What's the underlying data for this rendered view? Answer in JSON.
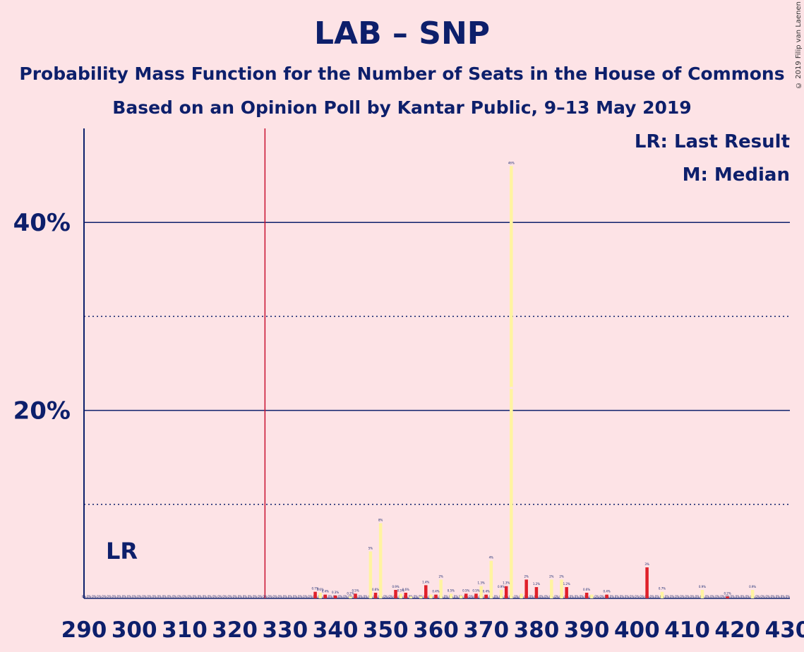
{
  "title": "LAB – SNP",
  "subtitle1": "Probability Mass Function for the Number of Seats in the House of Commons",
  "subtitle2": "Based on an Opinion Poll by Kantar Public, 9–13 May 2019",
  "copyright": "© 2019 Filip van Laenen",
  "legend": {
    "lr": "LR: Last Result",
    "median": "M: Median"
  },
  "lr_marker": "LR",
  "colors": {
    "background": "#fde3e6",
    "axis": "#0d1f6b",
    "bar_red": "#e0202a",
    "bar_yellow": "#fff4a0",
    "lr_line": "#c8102e"
  },
  "chart_data": {
    "type": "bar",
    "title": "LAB – SNP",
    "xlim": [
      290,
      430
    ],
    "ylim": [
      0,
      50
    ],
    "x_ticks": [
      290,
      300,
      310,
      320,
      330,
      340,
      350,
      360,
      370,
      380,
      390,
      400,
      410,
      420,
      430
    ],
    "y_ticks": [
      {
        "value": 20,
        "label": "20%"
      },
      {
        "value": 40,
        "label": "40%"
      }
    ],
    "y_minor_gridlines": [
      10,
      30
    ],
    "last_result": 326,
    "median": 375,
    "series": [
      {
        "color": "red",
        "points": [
          {
            "x": 336,
            "y": 0.7
          },
          {
            "x": 338,
            "y": 0.4
          },
          {
            "x": 340,
            "y": 0.3
          },
          {
            "x": 344,
            "y": 0.5
          },
          {
            "x": 348,
            "y": 0.6
          },
          {
            "x": 352,
            "y": 0.9
          },
          {
            "x": 354,
            "y": 0.6
          },
          {
            "x": 358,
            "y": 1.4
          },
          {
            "x": 360,
            "y": 0.4
          },
          {
            "x": 366,
            "y": 0.5
          },
          {
            "x": 368,
            "y": 0.5
          },
          {
            "x": 370,
            "y": 0.4
          },
          {
            "x": 374,
            "y": 1.3
          },
          {
            "x": 378,
            "y": 2
          },
          {
            "x": 380,
            "y": 1.2
          },
          {
            "x": 386,
            "y": 1.2
          },
          {
            "x": 390,
            "y": 0.6
          },
          {
            "x": 394,
            "y": 0.4
          },
          {
            "x": 402,
            "y": 3.3
          },
          {
            "x": 418,
            "y": 0.2
          }
        ]
      },
      {
        "color": "yellow",
        "points": [
          {
            "x": 337,
            "y": 0.6
          },
          {
            "x": 343,
            "y": 0.2
          },
          {
            "x": 347,
            "y": 5
          },
          {
            "x": 349,
            "y": 8
          },
          {
            "x": 353,
            "y": 0.5
          },
          {
            "x": 355,
            "y": 0.2
          },
          {
            "x": 357,
            "y": 0.2
          },
          {
            "x": 359,
            "y": 0.4
          },
          {
            "x": 361,
            "y": 2
          },
          {
            "x": 363,
            "y": 0.5
          },
          {
            "x": 365,
            "y": 0.3
          },
          {
            "x": 369,
            "y": 1.3
          },
          {
            "x": 371,
            "y": 4
          },
          {
            "x": 373,
            "y": 0.9
          },
          {
            "x": 375,
            "y": 46
          },
          {
            "x": 377,
            "y": 0.5
          },
          {
            "x": 383,
            "y": 2
          },
          {
            "x": 385,
            "y": 2
          },
          {
            "x": 391,
            "y": 0.4
          },
          {
            "x": 405,
            "y": 0.7
          },
          {
            "x": 413,
            "y": 0.9
          },
          {
            "x": 423,
            "y": 0.9
          }
        ]
      }
    ],
    "data_labels": [
      {
        "x": 336,
        "text": "0.7%"
      },
      {
        "x": 337,
        "text": "0.6%"
      },
      {
        "x": 338,
        "text": "0.4%"
      },
      {
        "x": 340,
        "text": "0.3%"
      },
      {
        "x": 343,
        "text": "0.2%"
      },
      {
        "x": 344,
        "text": "0.5%"
      },
      {
        "x": 347,
        "text": "5%"
      },
      {
        "x": 348,
        "text": "0.6%"
      },
      {
        "x": 349,
        "text": "8%"
      },
      {
        "x": 352,
        "text": "0.9%"
      },
      {
        "x": 353,
        "text": "0.5%"
      },
      {
        "x": 354,
        "text": "0.6%"
      },
      {
        "x": 358,
        "text": "1.4%"
      },
      {
        "x": 360,
        "text": "0.4%"
      },
      {
        "x": 361,
        "text": "2%"
      },
      {
        "x": 363,
        "text": "0.5%"
      },
      {
        "x": 366,
        "text": "0.5%"
      },
      {
        "x": 368,
        "text": "0.5%"
      },
      {
        "x": 369,
        "text": "1.3%"
      },
      {
        "x": 370,
        "text": "0.4%"
      },
      {
        "x": 371,
        "text": "4%"
      },
      {
        "x": 373,
        "text": "0.9%"
      },
      {
        "x": 374,
        "text": "1.3%"
      },
      {
        "x": 375,
        "text": "46%"
      },
      {
        "x": 378,
        "text": "2%"
      },
      {
        "x": 380,
        "text": "1.2%"
      },
      {
        "x": 383,
        "text": "2%"
      },
      {
        "x": 385,
        "text": "2%"
      },
      {
        "x": 386,
        "text": "1.2%"
      },
      {
        "x": 390,
        "text": "0.6%"
      },
      {
        "x": 394,
        "text": "0.4%"
      },
      {
        "x": 402,
        "text": "3%"
      },
      {
        "x": 405,
        "text": "0.7%"
      },
      {
        "x": 413,
        "text": "0.9%"
      },
      {
        "x": 418,
        "text": "0.2%"
      },
      {
        "x": 423,
        "text": "0.9%"
      }
    ]
  }
}
